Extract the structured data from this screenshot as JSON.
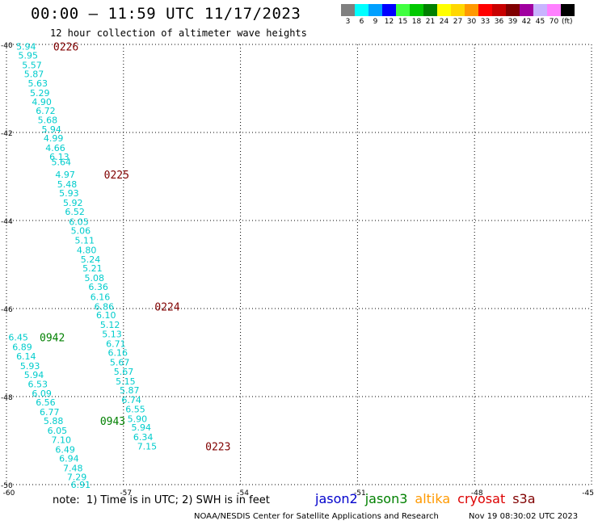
{
  "header": {
    "title": "00:00 — 11:59 UTC 11/17/2023",
    "subtitle": "12 hour collection of altimeter wave heights"
  },
  "scale": {
    "unit": "(ft)",
    "entries": [
      {
        "label": "3",
        "color": "#808080"
      },
      {
        "label": "6",
        "color": "#00ffff"
      },
      {
        "label": "9",
        "color": "#00a0ff"
      },
      {
        "label": "12",
        "color": "#0000ff"
      },
      {
        "label": "15",
        "color": "#40ff40"
      },
      {
        "label": "18",
        "color": "#00c800"
      },
      {
        "label": "21",
        "color": "#008000"
      },
      {
        "label": "24",
        "color": "#ffff00"
      },
      {
        "label": "27",
        "color": "#ffd700"
      },
      {
        "label": "30",
        "color": "#ff9900"
      },
      {
        "label": "33",
        "color": "#ff0000"
      },
      {
        "label": "36",
        "color": "#c80000"
      },
      {
        "label": "39",
        "color": "#800000"
      },
      {
        "label": "42",
        "color": "#a000a0"
      },
      {
        "label": "45",
        "color": "#c8b4ff"
      },
      {
        "label": "70",
        "color": "#ff80ff"
      },
      {
        "label": "",
        "color": "#000000"
      }
    ]
  },
  "footer": {
    "note": "note:  1) Time is in UTC; 2) SWH is in feet",
    "credit": "NOAA/NESDIS Center for Satellite Applications and Research",
    "timestamp": "Nov 19 08:30:02 UTC 2023",
    "satellites": [
      {
        "name": "jason2",
        "color": "#0000cc"
      },
      {
        "name": "jason3",
        "color": "#008000"
      },
      {
        "name": "altika",
        "color": "#ff9900"
      },
      {
        "name": "cryosat",
        "color": "#dd0000"
      },
      {
        "name": "s3a",
        "color": "#800000"
      }
    ]
  },
  "chart_data": {
    "type": "scatter",
    "xlim": [
      -60,
      -45
    ],
    "ylim": [
      -50,
      -40
    ],
    "x_ticks": [
      -60,
      -57,
      -54,
      -51,
      -48,
      -45
    ],
    "y_ticks": [
      -40,
      -42,
      -44,
      -46,
      -48,
      -50
    ],
    "grid": true,
    "point_color": "#00cccc",
    "series": [
      {
        "satellite": "s3a",
        "points": [
          {
            "x": -59.75,
            "y": -40.05,
            "label": "5.94"
          },
          {
            "x": -59.7,
            "y": -40.25,
            "label": "5.95"
          },
          {
            "x": -59.6,
            "y": -40.47,
            "label": "5.57"
          },
          {
            "x": -59.55,
            "y": -40.67,
            "label": "5.87"
          },
          {
            "x": -59.45,
            "y": -40.88,
            "label": "5.63"
          },
          {
            "x": -59.4,
            "y": -41.1,
            "label": "5.29"
          },
          {
            "x": -59.35,
            "y": -41.3,
            "label": "4.90"
          },
          {
            "x": -59.25,
            "y": -41.5,
            "label": "6.72"
          },
          {
            "x": -59.2,
            "y": -41.72,
            "label": "5.68"
          },
          {
            "x": -59.1,
            "y": -41.93,
            "label": "5.94"
          },
          {
            "x": -59.05,
            "y": -42.13,
            "label": "4.99"
          },
          {
            "x": -59.0,
            "y": -42.35,
            "label": "4.66"
          },
          {
            "x": -58.9,
            "y": -42.55,
            "label": "6.13"
          },
          {
            "x": -58.85,
            "y": -42.67,
            "label": "5.64"
          },
          {
            "x": -58.75,
            "y": -42.95,
            "label": "4.97"
          },
          {
            "x": -58.7,
            "y": -43.17,
            "label": "5.48"
          },
          {
            "x": -58.65,
            "y": -43.38,
            "label": "5.93"
          },
          {
            "x": -58.55,
            "y": -43.6,
            "label": "5.92"
          },
          {
            "x": -58.5,
            "y": -43.8,
            "label": "6.52"
          },
          {
            "x": -58.4,
            "y": -44.03,
            "label": "6.05"
          },
          {
            "x": -58.35,
            "y": -44.23,
            "label": "5.06"
          },
          {
            "x": -58.25,
            "y": -44.45,
            "label": "5.11"
          },
          {
            "x": -58.2,
            "y": -44.67,
            "label": "4.80"
          },
          {
            "x": -58.1,
            "y": -44.88,
            "label": "5.24"
          },
          {
            "x": -58.05,
            "y": -45.08,
            "label": "5.21"
          },
          {
            "x": -58.0,
            "y": -45.3,
            "label": "5.08"
          },
          {
            "x": -57.9,
            "y": -45.5,
            "label": "6.36"
          },
          {
            "x": -57.85,
            "y": -45.73,
            "label": "6.16"
          },
          {
            "x": -57.75,
            "y": -45.95,
            "label": "6.86"
          },
          {
            "x": -57.7,
            "y": -46.15,
            "label": "6.10"
          },
          {
            "x": -57.6,
            "y": -46.37,
            "label": "5.12"
          },
          {
            "x": -57.55,
            "y": -46.58,
            "label": "5.13"
          },
          {
            "x": -57.45,
            "y": -46.8,
            "label": "6.71"
          },
          {
            "x": -57.4,
            "y": -47.0,
            "label": "6.16"
          },
          {
            "x": -57.35,
            "y": -47.22,
            "label": "5.67"
          },
          {
            "x": -57.25,
            "y": -47.43,
            "label": "5.67"
          },
          {
            "x": -57.2,
            "y": -47.65,
            "label": "5.15"
          },
          {
            "x": -57.1,
            "y": -47.85,
            "label": "5.87"
          },
          {
            "x": -57.05,
            "y": -48.07,
            "label": "6.74"
          },
          {
            "x": -56.95,
            "y": -48.28,
            "label": "6.55"
          },
          {
            "x": -56.9,
            "y": -48.5,
            "label": "5.90"
          },
          {
            "x": -56.8,
            "y": -48.7,
            "label": "5.94"
          },
          {
            "x": -56.75,
            "y": -48.92,
            "label": "6.34"
          },
          {
            "x": -56.65,
            "y": -49.13,
            "label": "7.15"
          }
        ],
        "pass_labels": [
          {
            "x": -58.8,
            "y": -40.05,
            "label": "0226"
          },
          {
            "x": -57.5,
            "y": -42.95,
            "label": "0225"
          },
          {
            "x": -56.2,
            "y": -45.95,
            "label": "0224"
          },
          {
            "x": -54.9,
            "y": -49.13,
            "label": "0223"
          }
        ]
      },
      {
        "satellite": "jason3",
        "points": [
          {
            "x": -59.95,
            "y": -46.65,
            "label": "6.45"
          },
          {
            "x": -59.85,
            "y": -46.87,
            "label": "6.89"
          },
          {
            "x": -59.75,
            "y": -47.08,
            "label": "6.14"
          },
          {
            "x": -59.65,
            "y": -47.3,
            "label": "5.93"
          },
          {
            "x": -59.55,
            "y": -47.5,
            "label": "5.94"
          },
          {
            "x": -59.45,
            "y": -47.72,
            "label": "6.53"
          },
          {
            "x": -59.35,
            "y": -47.93,
            "label": "6.09"
          },
          {
            "x": -59.25,
            "y": -48.13,
            "label": "6.56"
          },
          {
            "x": -59.15,
            "y": -48.35,
            "label": "6.77"
          },
          {
            "x": -59.05,
            "y": -48.55,
            "label": "5.88"
          },
          {
            "x": -58.95,
            "y": -48.77,
            "label": "6.05"
          },
          {
            "x": -58.85,
            "y": -48.98,
            "label": "7.10"
          },
          {
            "x": -58.75,
            "y": -49.2,
            "label": "6.49"
          },
          {
            "x": -58.65,
            "y": -49.4,
            "label": "6.94"
          },
          {
            "x": -58.55,
            "y": -49.62,
            "label": "7.48"
          },
          {
            "x": -58.45,
            "y": -49.83,
            "label": "7.29"
          },
          {
            "x": -58.35,
            "y": -50.0,
            "label": "6.91"
          }
        ],
        "pass_labels": [
          {
            "x": -59.15,
            "y": -46.65,
            "label": "0942"
          },
          {
            "x": -57.6,
            "y": -48.55,
            "label": "0943"
          }
        ]
      }
    ]
  }
}
